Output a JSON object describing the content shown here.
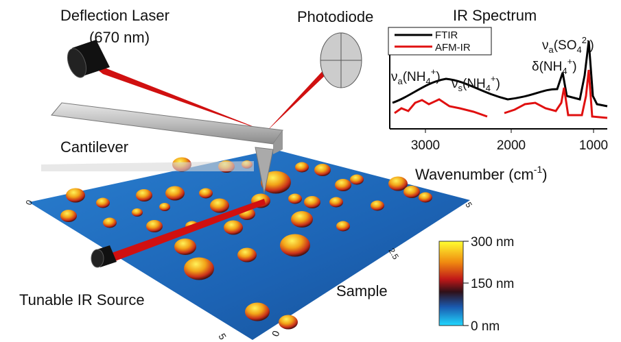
{
  "labels": {
    "deflection_laser": "Deflection Laser",
    "wavelength": "(670 nm)",
    "photodiode": "Photodiode",
    "cantilever": "Cantilever",
    "ir_source": "Tunable IR Source",
    "sample": "Sample"
  },
  "sample_axes": [
    "0",
    "5",
    "2.5",
    "5",
    "0"
  ],
  "inset": {
    "title": "IR Spectrum",
    "legend": [
      "FTIR",
      "AFM-IR"
    ],
    "xticks": [
      3000,
      2000,
      1000
    ],
    "xlabel": [
      "Wavenumber (cm",
      "-1",
      ")"
    ],
    "peaks": [
      [
        "ν",
        "a",
        "(NH",
        "4",
        "+",
        ")"
      ],
      [
        "ν",
        "s",
        "(NH",
        "4",
        "+",
        ")"
      ],
      [
        "δ(NH",
        "4",
        "+",
        ")"
      ],
      [
        "ν",
        "a",
        "(SO",
        "4",
        "2-",
        ")"
      ]
    ]
  },
  "colorbar": {
    "labels": [
      "300 nm",
      "150 nm",
      "0 nm"
    ]
  }
}
